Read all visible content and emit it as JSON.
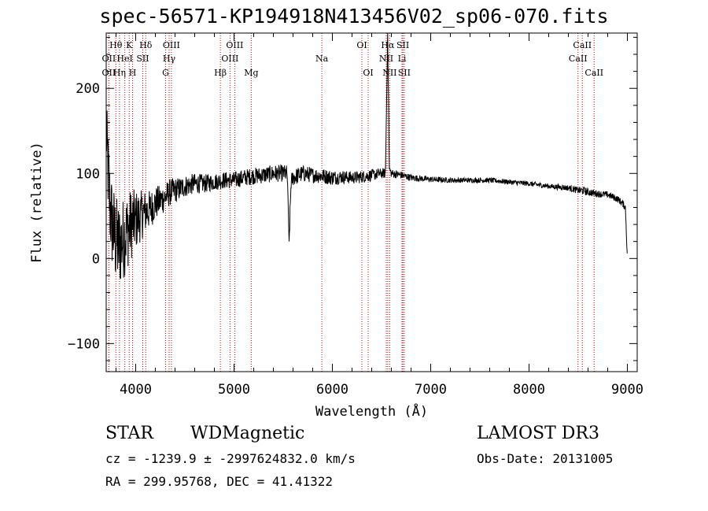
{
  "header": {
    "title": "spec-56571-KP194918N413456V02_sp06-070.fits"
  },
  "info": {
    "class": "STAR",
    "subclass": "WDMagnetic",
    "survey": "LAMOST DR3",
    "cz": "cz = -1239.9 ± -2997624832.0 km/s",
    "obs_date": "Obs-Date: 20131005",
    "radec": "RA = 299.95768, DEC =  41.41322"
  },
  "chart_data": {
    "type": "line",
    "title": "spec-56571-KP194918N413456V02_sp06-070.fits",
    "xlabel": "Wavelength (Å)",
    "ylabel": "Flux (relative)",
    "xlim": [
      3700,
      9100
    ],
    "ylim": [
      -133,
      265
    ],
    "xticks": [
      4000,
      5000,
      6000,
      7000,
      8000,
      9000
    ],
    "yticks": [
      -100,
      0,
      100,
      200
    ],
    "colors": {
      "line": "#000000",
      "marker": "#cc0000"
    },
    "spectrum_anchors": {
      "x": [
        3700,
        3720,
        3740,
        3760,
        3780,
        3800,
        3830,
        3860,
        3900,
        3950,
        4000,
        4050,
        4100,
        4150,
        4200,
        4250,
        4300,
        4350,
        4400,
        4450,
        4500,
        4600,
        4700,
        4800,
        4900,
        5000,
        5100,
        5200,
        5300,
        5400,
        5500,
        5540,
        5560,
        5580,
        5600,
        5700,
        5800,
        5900,
        6000,
        6100,
        6200,
        6300,
        6400,
        6500,
        6540,
        6562,
        6580,
        6600,
        6700,
        6800,
        7000,
        7200,
        7400,
        7600,
        7800,
        8000,
        8200,
        8400,
        8500,
        8550,
        8600,
        8700,
        8800,
        8900,
        8950,
        8980,
        9000
      ],
      "y": [
        150,
        100,
        60,
        40,
        30,
        20,
        15,
        20,
        30,
        40,
        45,
        50,
        55,
        58,
        65,
        68,
        72,
        78,
        80,
        82,
        85,
        88,
        88,
        90,
        92,
        92,
        95,
        97,
        98,
        100,
        100,
        100,
        20,
        90,
        95,
        100,
        98,
        97,
        95,
        96,
        95,
        96,
        98,
        100,
        100,
        265,
        105,
        100,
        98,
        95,
        93,
        92,
        92,
        92,
        90,
        88,
        85,
        83,
        80,
        80,
        78,
        76,
        75,
        70,
        65,
        60,
        0
      ],
      "noise_amplitude": [
        80,
        110,
        110,
        110,
        110,
        110,
        105,
        100,
        95,
        85,
        72,
        60,
        52,
        45,
        40,
        37,
        34,
        32,
        30,
        28,
        26,
        24,
        22,
        20,
        20,
        20,
        20,
        20,
        20,
        20,
        20,
        20,
        20,
        20,
        20,
        20,
        18,
        18,
        18,
        16,
        15,
        15,
        14,
        12,
        12,
        12,
        10,
        10,
        9,
        8,
        7,
        6,
        6,
        6,
        6,
        6,
        6,
        7,
        8,
        10,
        9,
        8,
        8,
        8,
        8,
        8,
        8
      ]
    },
    "line_markers": [
      {
        "name": "Hθ",
        "wavelength": 3798,
        "row": 1
      },
      {
        "name": "OII",
        "wavelength": 3727,
        "row": 2
      },
      {
        "name": "OII",
        "wavelength": 3727,
        "row": 3
      },
      {
        "name": "K",
        "wavelength": 3934,
        "row": 1
      },
      {
        "name": "HeI",
        "wavelength": 3889,
        "row": 2
      },
      {
        "name": "Hη",
        "wavelength": 3835,
        "row": 3
      },
      {
        "name": "Hδ",
        "wavelength": 4102,
        "row": 1
      },
      {
        "name": "SII",
        "wavelength": 4072,
        "row": 2
      },
      {
        "name": "H",
        "wavelength": 3968,
        "row": 3
      },
      {
        "name": "OIII",
        "wavelength": 4363,
        "row": 1
      },
      {
        "name": "Hγ",
        "wavelength": 4340,
        "row": 2
      },
      {
        "name": "G",
        "wavelength": 4304,
        "row": 3
      },
      {
        "name": "OIII",
        "wavelength": 5007,
        "row": 1
      },
      {
        "name": "OIII",
        "wavelength": 4959,
        "row": 2
      },
      {
        "name": "Hβ",
        "wavelength": 4861,
        "row": 3
      },
      {
        "name": "Mg",
        "wavelength": 5175,
        "row": 3
      },
      {
        "name": "Na",
        "wavelength": 5893,
        "row": 2
      },
      {
        "name": "OI",
        "wavelength": 6300,
        "row": 1
      },
      {
        "name": "OI",
        "wavelength": 6364,
        "row": 3
      },
      {
        "name": "Hα",
        "wavelength": 6563,
        "row": 1
      },
      {
        "name": "SII",
        "wavelength": 6717,
        "row": 1
      },
      {
        "name": "NII",
        "wavelength": 6548,
        "row": 2
      },
      {
        "name": "Li",
        "wavelength": 6708,
        "row": 2
      },
      {
        "name": "NII",
        "wavelength": 6583,
        "row": 3
      },
      {
        "name": "SII",
        "wavelength": 6731,
        "row": 3
      },
      {
        "name": "CaII",
        "wavelength": 8542,
        "row": 1
      },
      {
        "name": "CaII",
        "wavelength": 8498,
        "row": 2
      },
      {
        "name": "CaII",
        "wavelength": 8662,
        "row": 3
      }
    ]
  }
}
